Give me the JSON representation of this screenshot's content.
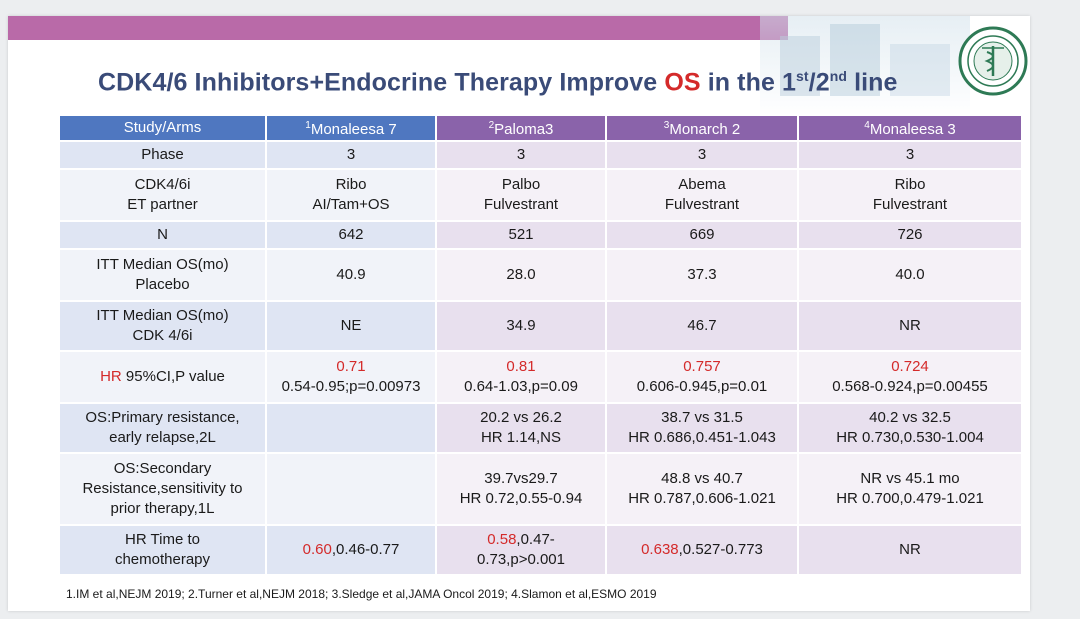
{
  "title": {
    "pre": "CDK4/6 Inhibitors+Endocrine Therapy Improve ",
    "highlight": "OS",
    "mid": " in the 1",
    "sup1": "st",
    "slash": "/2",
    "sup2": "nd",
    "post": " line"
  },
  "table": {
    "header": {
      "col0": "Study/Arms",
      "col1_num": "1",
      "col1": "Monaleesa 7",
      "col2_num": "2",
      "col2": "Paloma3",
      "col3_num": "3",
      "col3": "Monarch 2",
      "col4_num": "4",
      "col4": "Monaleesa 3"
    },
    "phase": {
      "label": "Phase",
      "v1": "3",
      "v2": "3",
      "v3": "3",
      "v4": "3"
    },
    "cdk": {
      "label1": "CDK4/6i",
      "label2": "ET partner",
      "v1a": "Ribo",
      "v1b": "AI/Tam+OS",
      "v2a": "Palbo",
      "v2b": "Fulvestrant",
      "v3a": "Abema",
      "v3b": "Fulvestrant",
      "v4a": "Ribo",
      "v4b": "Fulvestrant"
    },
    "n": {
      "label": "N",
      "v1": "642",
      "v2": "521",
      "v3": "669",
      "v4": "726"
    },
    "itt_placebo": {
      "label1": "ITT Median OS(mo)",
      "label2": "Placebo",
      "v1": "40.9",
      "v2": "28.0",
      "v3": "37.3",
      "v4": "40.0"
    },
    "itt_cdk": {
      "label1": "ITT Median OS(mo)",
      "label2": "CDK 4/6i",
      "v1": "NE",
      "v2": "34.9",
      "v3": "46.7",
      "v4": "NR"
    },
    "hr": {
      "label_red": "HR",
      "label_rest": " 95%CI,P value",
      "v1a": "0.71",
      "v1b": "0.54-0.95;p=0.00973",
      "v2a": "0.81",
      "v2b": "0.64-1.03,p=0.09",
      "v3a": "0.757",
      "v3b": "0.606-0.945,p=0.01",
      "v4a": "0.724",
      "v4b": "0.568-0.924,p=0.00455"
    },
    "primary": {
      "label1": "OS:Primary resistance,",
      "label2": "early relapse,2L",
      "v1": "",
      "v2a": "20.2 vs 26.2",
      "v2b": "HR 1.14,NS",
      "v3a": "38.7 vs 31.5",
      "v3b": "HR 0.686,0.451-1.043",
      "v4a": "40.2 vs 32.5",
      "v4b": "HR 0.730,0.530-1.004"
    },
    "secondary": {
      "label1": "OS:Secondary",
      "label2": "Resistance,sensitivity to",
      "label3": "prior therapy,1L",
      "v1": "",
      "v2a": "39.7vs29.7",
      "v2b": "HR 0.72,0.55-0.94",
      "v3a": "48.8 vs 40.7",
      "v3b": "HR 0.787,0.606-1.021",
      "v4a": "NR vs 45.1 mo",
      "v4b": "HR 0.700,0.479-1.021"
    },
    "chemo": {
      "label1": "HR Time to",
      "label2": "chemotherapy",
      "v1_red": "0.60",
      "v1_rest": ",0.46-0.77",
      "v2_red": "0.58",
      "v2_rest": ",0.47-",
      "v2_line2": "0.73,p>0.001",
      "v3_red": "0.638",
      "v3_rest": ",0.527-0.773",
      "v4": "NR"
    }
  },
  "references": "1.IM et al,NEJM 2019;  2.Turner et al,NEJM 2018;  3.Sledge et al,JAMA Oncol 2019;  4.Slamon et al,ESMO 2019",
  "colors": {
    "accent_red": "#d42a2a",
    "header_blue": "#4f77c0",
    "header_purple": "#8a63aa",
    "title_navy": "#3a4b78",
    "top_bar": "#b96aa8"
  },
  "icons": {
    "logo": "university-seal-icon"
  }
}
